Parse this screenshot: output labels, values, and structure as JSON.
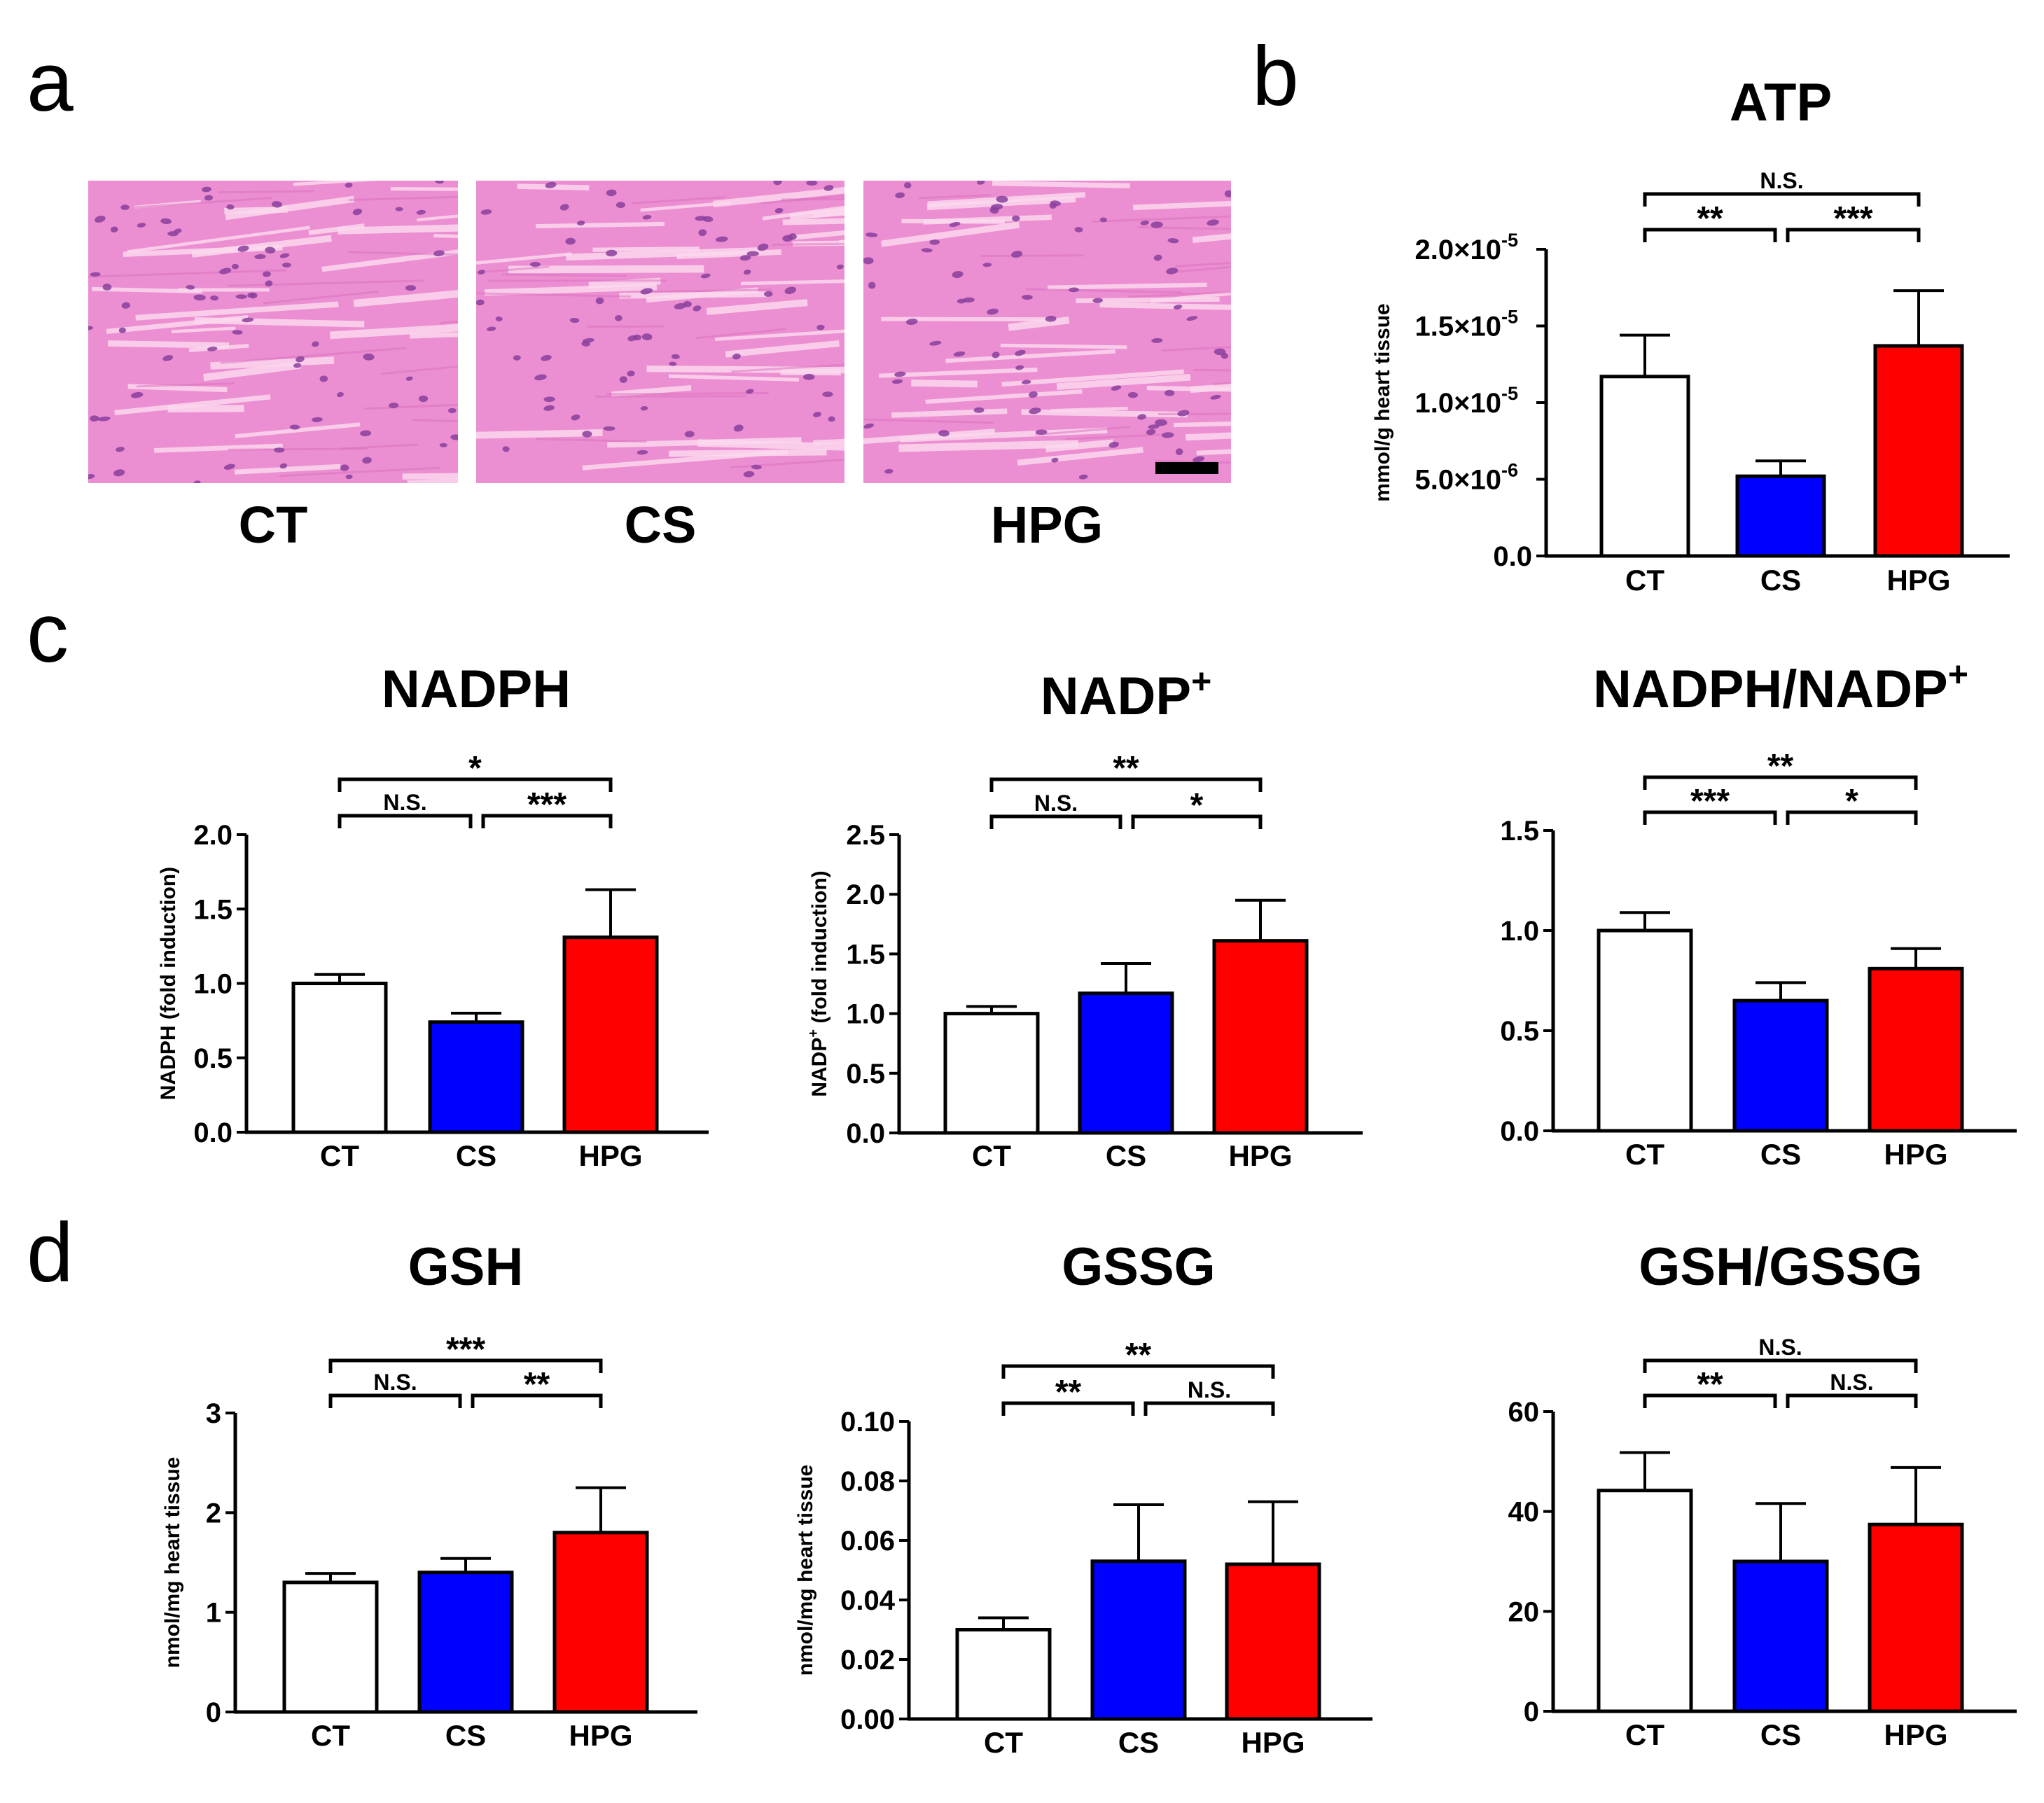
{
  "panel_letters": {
    "a": "a",
    "b": "b",
    "c": "c",
    "d": "d"
  },
  "histology": {
    "labels": [
      "CT",
      "CS",
      "HPG"
    ],
    "stain_color": "#ec8fd2",
    "nucleus_color": "#8a3f9c"
  },
  "colors": {
    "CT": "#ffffff",
    "CS": "#0000ff",
    "HPG": "#ff0000",
    "axis": "#000000"
  },
  "chart_data": [
    {
      "id": "atp",
      "type": "bar",
      "title": "ATP",
      "ylabel": "mmol/g heart tissue",
      "categories": [
        "CT",
        "CS",
        "HPG"
      ],
      "values": [
        1.17e-05,
        5.2e-06,
        1.37e-05
      ],
      "errors": [
        2.7e-06,
        1e-06,
        3.6e-06
      ],
      "ylim": [
        0,
        2e-05
      ],
      "ticks": [
        0,
        5e-06,
        1e-05,
        1.5e-05,
        2e-05
      ],
      "tick_labels": [
        {
          "base": "0.0",
          "exp": ""
        },
        {
          "base": "5.0×10",
          "exp": "-6"
        },
        {
          "base": "1.0×10",
          "exp": "-5"
        },
        {
          "base": "1.5×10",
          "exp": "-5"
        },
        {
          "base": "2.0×10",
          "exp": "-5"
        }
      ],
      "significance": [
        {
          "from": 0,
          "to": 1,
          "label": "**"
        },
        {
          "from": 1,
          "to": 2,
          "label": "***"
        },
        {
          "from": 0,
          "to": 2,
          "label": "N.S."
        }
      ]
    },
    {
      "id": "nadph",
      "type": "bar",
      "title": "NADPH",
      "ylabel": "NADPH (fold induction)",
      "categories": [
        "CT",
        "CS",
        "HPG"
      ],
      "values": [
        1.0,
        0.74,
        1.31
      ],
      "errors": [
        0.06,
        0.06,
        0.32
      ],
      "ylim": [
        0,
        2.0
      ],
      "ticks": [
        0,
        0.5,
        1.0,
        1.5,
        2.0
      ],
      "tick_labels": [
        {
          "base": "0.0",
          "exp": ""
        },
        {
          "base": "0.5",
          "exp": ""
        },
        {
          "base": "1.0",
          "exp": ""
        },
        {
          "base": "1.5",
          "exp": ""
        },
        {
          "base": "2.0",
          "exp": ""
        }
      ],
      "significance": [
        {
          "from": 0,
          "to": 1,
          "label": "N.S."
        },
        {
          "from": 1,
          "to": 2,
          "label": "***"
        },
        {
          "from": 0,
          "to": 2,
          "label": "*"
        }
      ]
    },
    {
      "id": "nadp",
      "type": "bar",
      "title": "NADP",
      "title_sup": "+",
      "ylabel": "NADP",
      "ylabel_sup": "+",
      "ylabel_rest": " (fold induction)",
      "categories": [
        "CT",
        "CS",
        "HPG"
      ],
      "values": [
        1.0,
        1.17,
        1.61
      ],
      "errors": [
        0.06,
        0.25,
        0.34
      ],
      "ylim": [
        0,
        2.5
      ],
      "ticks": [
        0,
        0.5,
        1.0,
        1.5,
        2.0,
        2.5
      ],
      "tick_labels": [
        {
          "base": "0.0",
          "exp": ""
        },
        {
          "base": "0.5",
          "exp": ""
        },
        {
          "base": "1.0",
          "exp": ""
        },
        {
          "base": "1.5",
          "exp": ""
        },
        {
          "base": "2.0",
          "exp": ""
        },
        {
          "base": "2.5",
          "exp": ""
        }
      ],
      "significance": [
        {
          "from": 0,
          "to": 1,
          "label": "N.S."
        },
        {
          "from": 1,
          "to": 2,
          "label": "*"
        },
        {
          "from": 0,
          "to": 2,
          "label": "**"
        }
      ]
    },
    {
      "id": "nadph_ratio",
      "type": "bar",
      "title": "NADPH/NADP",
      "title_sup": "+",
      "ylabel": "",
      "categories": [
        "CT",
        "CS",
        "HPG"
      ],
      "values": [
        1.0,
        0.65,
        0.81
      ],
      "errors": [
        0.09,
        0.09,
        0.1
      ],
      "ylim": [
        0,
        1.5
      ],
      "ticks": [
        0,
        0.5,
        1.0,
        1.5
      ],
      "tick_labels": [
        {
          "base": "0.0",
          "exp": ""
        },
        {
          "base": "0.5",
          "exp": ""
        },
        {
          "base": "1.0",
          "exp": ""
        },
        {
          "base": "1.5",
          "exp": ""
        }
      ],
      "significance": [
        {
          "from": 0,
          "to": 1,
          "label": "***"
        },
        {
          "from": 1,
          "to": 2,
          "label": "*"
        },
        {
          "from": 0,
          "to": 2,
          "label": "**"
        }
      ]
    },
    {
      "id": "gsh",
      "type": "bar",
      "title": "GSH",
      "ylabel": "nmol/mg heart tissue",
      "categories": [
        "CT",
        "CS",
        "HPG"
      ],
      "values": [
        1.3,
        1.4,
        1.8
      ],
      "errors": [
        0.09,
        0.14,
        0.45
      ],
      "ylim": [
        0,
        3
      ],
      "ticks": [
        0,
        1,
        2,
        3
      ],
      "tick_labels": [
        {
          "base": "0",
          "exp": ""
        },
        {
          "base": "1",
          "exp": ""
        },
        {
          "base": "2",
          "exp": ""
        },
        {
          "base": "3",
          "exp": ""
        }
      ],
      "significance": [
        {
          "from": 0,
          "to": 1,
          "label": "N.S."
        },
        {
          "from": 1,
          "to": 2,
          "label": "**"
        },
        {
          "from": 0,
          "to": 2,
          "label": "***"
        }
      ]
    },
    {
      "id": "gssg",
      "type": "bar",
      "title": "GSSG",
      "ylabel": "nmol/mg heart tissue",
      "categories": [
        "CT",
        "CS",
        "HPG"
      ],
      "values": [
        0.03,
        0.053,
        0.052
      ],
      "errors": [
        0.004,
        0.019,
        0.021
      ],
      "ylim": [
        0,
        0.1
      ],
      "ticks": [
        0,
        0.02,
        0.04,
        0.06,
        0.08,
        0.1
      ],
      "tick_labels": [
        {
          "base": "0.00",
          "exp": ""
        },
        {
          "base": "0.02",
          "exp": ""
        },
        {
          "base": "0.04",
          "exp": ""
        },
        {
          "base": "0.06",
          "exp": ""
        },
        {
          "base": "0.08",
          "exp": ""
        },
        {
          "base": "0.10",
          "exp": ""
        }
      ],
      "significance": [
        {
          "from": 0,
          "to": 1,
          "label": "**"
        },
        {
          "from": 1,
          "to": 2,
          "label": "N.S."
        },
        {
          "from": 0,
          "to": 2,
          "label": "**"
        }
      ]
    },
    {
      "id": "gsh_ratio",
      "type": "bar",
      "title": "GSH/GSSG",
      "ylabel": "",
      "categories": [
        "CT",
        "CS",
        "HPG"
      ],
      "values": [
        44.2,
        30.0,
        37.4
      ],
      "errors": [
        7.6,
        11.6,
        11.4
      ],
      "ylim": [
        0,
        60
      ],
      "ticks": [
        0,
        20,
        40,
        60
      ],
      "tick_labels": [
        {
          "base": "0",
          "exp": ""
        },
        {
          "base": "20",
          "exp": ""
        },
        {
          "base": "40",
          "exp": ""
        },
        {
          "base": "60",
          "exp": ""
        }
      ],
      "significance": [
        {
          "from": 0,
          "to": 1,
          "label": "**"
        },
        {
          "from": 1,
          "to": 2,
          "label": "N.S."
        },
        {
          "from": 0,
          "to": 2,
          "label": "N.S."
        }
      ]
    }
  ]
}
